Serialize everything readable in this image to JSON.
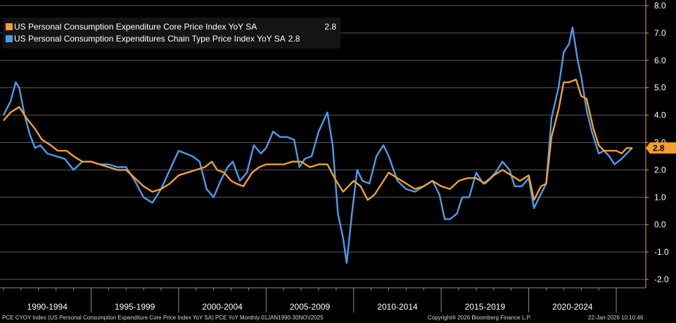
{
  "chart_data": {
    "type": "line",
    "title": "",
    "xlabel": "",
    "ylabel": "",
    "ylim": [
      -2.0,
      8.0
    ],
    "y_ticks": [
      "8.0",
      "7.0",
      "6.0",
      "5.0",
      "4.0",
      "3.0",
      "2.0",
      "1.0",
      "0.0",
      "-1.0",
      "-2.0"
    ],
    "x_range": [
      1990.0,
      2025.92
    ],
    "x_periods": [
      "1990-1994",
      "1995-1999",
      "2000-2004",
      "2005-2009",
      "2010-2014",
      "2015-2019",
      "2020-2024"
    ],
    "last_value_label": "2.8",
    "series": [
      {
        "name": "US Personal Consumption Expenditure Core Price Index YoY SA",
        "last_value": "2.8",
        "color": "#f5a02a",
        "points": [
          [
            1990.0,
            3.8
          ],
          [
            1990.4,
            4.1
          ],
          [
            1990.9,
            4.3
          ],
          [
            1991.3,
            3.9
          ],
          [
            1991.8,
            3.5
          ],
          [
            1992.2,
            3.1
          ],
          [
            1992.7,
            2.9
          ],
          [
            1993.1,
            2.7
          ],
          [
            1993.6,
            2.7
          ],
          [
            1994.0,
            2.5
          ],
          [
            1994.5,
            2.3
          ],
          [
            1995.0,
            2.3
          ],
          [
            1995.5,
            2.2
          ],
          [
            1996.0,
            2.1
          ],
          [
            1996.5,
            2.0
          ],
          [
            1997.0,
            2.0
          ],
          [
            1997.5,
            1.7
          ],
          [
            1998.0,
            1.4
          ],
          [
            1998.5,
            1.2
          ],
          [
            1999.0,
            1.3
          ],
          [
            1999.5,
            1.5
          ],
          [
            2000.0,
            1.8
          ],
          [
            2000.5,
            1.9
          ],
          [
            2001.0,
            2.0
          ],
          [
            2001.5,
            2.1
          ],
          [
            2001.9,
            2.3
          ],
          [
            2002.2,
            2.0
          ],
          [
            2002.6,
            1.9
          ],
          [
            2003.0,
            1.6
          ],
          [
            2003.3,
            1.5
          ],
          [
            2003.7,
            1.4
          ],
          [
            2004.2,
            1.9
          ],
          [
            2004.6,
            2.1
          ],
          [
            2005.0,
            2.2
          ],
          [
            2005.5,
            2.2
          ],
          [
            2006.0,
            2.2
          ],
          [
            2006.5,
            2.3
          ],
          [
            2007.0,
            2.3
          ],
          [
            2007.5,
            2.1
          ],
          [
            2008.0,
            2.2
          ],
          [
            2008.5,
            2.2
          ],
          [
            2009.0,
            1.6
          ],
          [
            2009.4,
            1.2
          ],
          [
            2009.7,
            1.4
          ],
          [
            2010.0,
            1.6
          ],
          [
            2010.4,
            1.4
          ],
          [
            2010.8,
            0.9
          ],
          [
            2011.2,
            1.1
          ],
          [
            2011.6,
            1.5
          ],
          [
            2012.0,
            1.9
          ],
          [
            2012.5,
            1.7
          ],
          [
            2013.0,
            1.5
          ],
          [
            2013.5,
            1.3
          ],
          [
            2014.0,
            1.4
          ],
          [
            2014.5,
            1.6
          ],
          [
            2015.0,
            1.4
          ],
          [
            2015.5,
            1.3
          ],
          [
            2016.0,
            1.6
          ],
          [
            2016.5,
            1.7
          ],
          [
            2017.0,
            1.7
          ],
          [
            2017.5,
            1.5
          ],
          [
            2018.0,
            1.8
          ],
          [
            2018.5,
            2.0
          ],
          [
            2019.0,
            1.8
          ],
          [
            2019.5,
            1.6
          ],
          [
            2020.0,
            1.8
          ],
          [
            2020.3,
            0.9
          ],
          [
            2020.7,
            1.4
          ],
          [
            2021.0,
            1.5
          ],
          [
            2021.3,
            3.2
          ],
          [
            2021.7,
            4.2
          ],
          [
            2022.0,
            5.2
          ],
          [
            2022.3,
            5.2
          ],
          [
            2022.7,
            5.3
          ],
          [
            2023.0,
            4.7
          ],
          [
            2023.3,
            4.6
          ],
          [
            2023.7,
            3.5
          ],
          [
            2024.0,
            2.9
          ],
          [
            2024.3,
            2.7
          ],
          [
            2024.7,
            2.7
          ],
          [
            2025.0,
            2.7
          ],
          [
            2025.3,
            2.6
          ],
          [
            2025.6,
            2.8
          ],
          [
            2025.92,
            2.8
          ]
        ]
      },
      {
        "name": "US Personal Consumption Expenditures Chain Type Price Index YoY SA",
        "last_value": "2.8",
        "color": "#4a9cf0",
        "points": [
          [
            1990.0,
            4.0
          ],
          [
            1990.4,
            4.5
          ],
          [
            1990.7,
            5.2
          ],
          [
            1990.9,
            5.0
          ],
          [
            1991.2,
            4.0
          ],
          [
            1991.5,
            3.3
          ],
          [
            1991.8,
            2.8
          ],
          [
            1992.1,
            2.9
          ],
          [
            1992.5,
            2.6
          ],
          [
            1993.0,
            2.5
          ],
          [
            1993.5,
            2.4
          ],
          [
            1994.0,
            2.0
          ],
          [
            1994.5,
            2.3
          ],
          [
            1995.0,
            2.3
          ],
          [
            1995.5,
            2.2
          ],
          [
            1996.0,
            2.2
          ],
          [
            1996.5,
            2.1
          ],
          [
            1997.0,
            2.1
          ],
          [
            1997.5,
            1.6
          ],
          [
            1998.0,
            1.0
          ],
          [
            1998.5,
            0.8
          ],
          [
            1999.0,
            1.3
          ],
          [
            1999.5,
            2.0
          ],
          [
            2000.0,
            2.7
          ],
          [
            2000.4,
            2.6
          ],
          [
            2000.8,
            2.5
          ],
          [
            2001.2,
            2.3
          ],
          [
            2001.6,
            1.3
          ],
          [
            2002.0,
            1.0
          ],
          [
            2002.4,
            1.6
          ],
          [
            2002.8,
            2.1
          ],
          [
            2003.1,
            2.3
          ],
          [
            2003.5,
            1.6
          ],
          [
            2003.9,
            1.9
          ],
          [
            2004.3,
            2.9
          ],
          [
            2004.7,
            2.6
          ],
          [
            2005.0,
            2.8
          ],
          [
            2005.4,
            3.4
          ],
          [
            2005.8,
            3.2
          ],
          [
            2006.2,
            3.2
          ],
          [
            2006.6,
            3.1
          ],
          [
            2006.9,
            2.1
          ],
          [
            2007.2,
            2.4
          ],
          [
            2007.6,
            2.5
          ],
          [
            2008.0,
            3.4
          ],
          [
            2008.5,
            4.1
          ],
          [
            2008.8,
            2.9
          ],
          [
            2009.1,
            0.4
          ],
          [
            2009.4,
            -0.5
          ],
          [
            2009.6,
            -1.4
          ],
          [
            2009.9,
            0.4
          ],
          [
            2010.2,
            2.0
          ],
          [
            2010.5,
            1.6
          ],
          [
            2010.9,
            1.5
          ],
          [
            2011.3,
            2.5
          ],
          [
            2011.7,
            2.9
          ],
          [
            2012.0,
            2.5
          ],
          [
            2012.5,
            1.6
          ],
          [
            2013.0,
            1.3
          ],
          [
            2013.5,
            1.2
          ],
          [
            2014.0,
            1.4
          ],
          [
            2014.5,
            1.6
          ],
          [
            2014.9,
            1.1
          ],
          [
            2015.2,
            0.2
          ],
          [
            2015.5,
            0.2
          ],
          [
            2015.9,
            0.4
          ],
          [
            2016.2,
            1.0
          ],
          [
            2016.6,
            1.0
          ],
          [
            2017.0,
            1.9
          ],
          [
            2017.4,
            1.5
          ],
          [
            2017.8,
            1.7
          ],
          [
            2018.1,
            1.9
          ],
          [
            2018.5,
            2.3
          ],
          [
            2018.9,
            2.0
          ],
          [
            2019.2,
            1.4
          ],
          [
            2019.6,
            1.4
          ],
          [
            2020.0,
            1.7
          ],
          [
            2020.3,
            0.6
          ],
          [
            2020.6,
            1.0
          ],
          [
            2021.0,
            1.5
          ],
          [
            2021.3,
            3.9
          ],
          [
            2021.7,
            5.0
          ],
          [
            2022.0,
            6.3
          ],
          [
            2022.3,
            6.6
          ],
          [
            2022.5,
            7.2
          ],
          [
            2022.8,
            6.0
          ],
          [
            2023.0,
            5.4
          ],
          [
            2023.3,
            4.2
          ],
          [
            2023.6,
            3.4
          ],
          [
            2024.0,
            2.6
          ],
          [
            2024.3,
            2.7
          ],
          [
            2024.6,
            2.5
          ],
          [
            2024.9,
            2.2
          ],
          [
            2025.3,
            2.4
          ],
          [
            2025.6,
            2.6
          ],
          [
            2025.92,
            2.8
          ]
        ]
      }
    ]
  },
  "footer": {
    "source": "PCE CYOY Index (US Personal Consumption Expenditure Core Price Index YoY SA) PCE YoY Monthly 01JAN1990-30NOV2025",
    "copyright": "Copyright® 2026 Bloomberg Finance L.P.",
    "timestamp": "22-Jan-2026 10:10:46"
  }
}
